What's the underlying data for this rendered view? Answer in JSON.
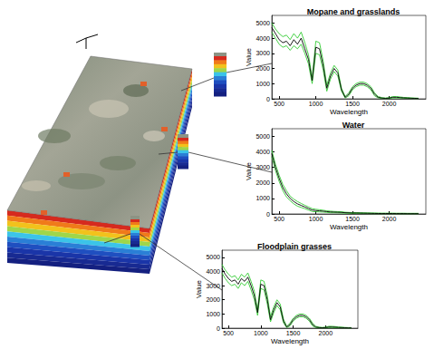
{
  "chart_data": [
    {
      "type": "line",
      "title": "Mopane and grasslands",
      "xlabel": "Wavelength",
      "ylabel": "Value",
      "x": [
        400,
        450,
        500,
        550,
        600,
        650,
        700,
        750,
        800,
        850,
        900,
        950,
        1000,
        1050,
        1100,
        1150,
        1200,
        1250,
        1300,
        1350,
        1400,
        1450,
        1500,
        1550,
        1600,
        1650,
        1700,
        1750,
        1800,
        1850,
        1900,
        1950,
        2000,
        2050,
        2100,
        2150,
        2200,
        2250,
        2300,
        2350,
        2400
      ],
      "series": [
        {
          "color": "#33cc33",
          "values": [
            5000,
            4600,
            4300,
            4100,
            4200,
            3900,
            4300,
            4000,
            4400,
            3700,
            2900,
            1400,
            3800,
            3700,
            2500,
            900,
            1700,
            2200,
            1900,
            700,
            150,
            400,
            800,
            1000,
            1100,
            1100,
            1000,
            800,
            400,
            150,
            80,
            50,
            80,
            150,
            150,
            120,
            90,
            80,
            60,
            50,
            40
          ]
        },
        {
          "color": "#33cc33",
          "values": [
            4400,
            4000,
            3600,
            3400,
            3500,
            3200,
            3500,
            3300,
            3600,
            3000,
            2300,
            1000,
            3000,
            2900,
            1900,
            500,
            1300,
            1800,
            1500,
            500,
            50,
            200,
            600,
            800,
            900,
            900,
            800,
            600,
            200,
            60,
            20,
            10,
            20,
            60,
            60,
            50,
            40,
            30,
            20,
            10,
            10
          ]
        },
        {
          "color": "#000000",
          "values": [
            4700,
            4300,
            3900,
            3700,
            3800,
            3500,
            3900,
            3600,
            4000,
            3300,
            2600,
            1200,
            3400,
            3300,
            2200,
            700,
            1500,
            2000,
            1700,
            600,
            100,
            300,
            700,
            900,
            1000,
            1000,
            900,
            700,
            300,
            100,
            50,
            30,
            50,
            100,
            100,
            80,
            60,
            50,
            40,
            30,
            20
          ]
        }
      ],
      "xlim": [
        400,
        2500
      ],
      "xticks": [
        500,
        1000,
        1500,
        2000
      ],
      "ylim": [
        0,
        5500
      ],
      "yticks": [
        0,
        1000,
        2000,
        3000,
        4000,
        5000
      ],
      "grid": false
    },
    {
      "type": "line",
      "title": "Water",
      "xlabel": "Wavelength",
      "ylabel": "Value",
      "x": [
        400,
        450,
        500,
        550,
        600,
        650,
        700,
        750,
        800,
        850,
        900,
        950,
        1000,
        1050,
        1100,
        1150,
        1200,
        1250,
        1300,
        1350,
        1400,
        1450,
        1500,
        1550,
        1600,
        1650,
        1700,
        1750,
        1800,
        1850,
        1900,
        1950,
        2000,
        2050,
        2100,
        2150,
        2200,
        2250,
        2300,
        2350,
        2400
      ],
      "series": [
        {
          "color": "#33cc33",
          "values": [
            4100,
            3200,
            2500,
            1900,
            1500,
            1150,
            950,
            800,
            680,
            560,
            450,
            340,
            300,
            270,
            240,
            200,
            180,
            160,
            150,
            140,
            110,
            100,
            90,
            85,
            80,
            75,
            70,
            65,
            60,
            55,
            50,
            50,
            50,
            50,
            45,
            45,
            45,
            40,
            40,
            40,
            40
          ]
        },
        {
          "color": "#33cc33",
          "values": [
            3700,
            2800,
            2100,
            1500,
            1100,
            850,
            650,
            500,
            420,
            340,
            250,
            160,
            140,
            130,
            120,
            100,
            80,
            80,
            70,
            60,
            50,
            40,
            30,
            35,
            30,
            25,
            20,
            15,
            10,
            10,
            10,
            10,
            10,
            10,
            5,
            5,
            5,
            5,
            5,
            5,
            5
          ]
        },
        {
          "color": "#000000",
          "values": [
            3900,
            3000,
            2300,
            1700,
            1300,
            1000,
            800,
            650,
            550,
            450,
            350,
            250,
            220,
            200,
            180,
            150,
            130,
            120,
            110,
            100,
            80,
            70,
            60,
            60,
            55,
            50,
            45,
            40,
            35,
            30,
            30,
            30,
            30,
            30,
            25,
            25,
            25,
            20,
            20,
            20,
            20
          ]
        }
      ],
      "xlim": [
        400,
        2500
      ],
      "xticks": [
        500,
        1000,
        1500,
        2000
      ],
      "ylim": [
        0,
        5500
      ],
      "yticks": [
        0,
        1000,
        2000,
        3000,
        4000,
        5000
      ],
      "grid": false
    },
    {
      "type": "line",
      "title": "Floodplain grasses",
      "xlabel": "Wavelength",
      "ylabel": "Value",
      "x": [
        400,
        450,
        500,
        550,
        600,
        650,
        700,
        750,
        800,
        850,
        900,
        950,
        1000,
        1050,
        1100,
        1150,
        1200,
        1250,
        1300,
        1350,
        1400,
        1450,
        1500,
        1550,
        1600,
        1650,
        1700,
        1750,
        1800,
        1850,
        1900,
        1950,
        2000,
        2050,
        2100,
        2150,
        2200,
        2250,
        2300,
        2350,
        2400
      ],
      "series": [
        {
          "color": "#33cc33",
          "values": [
            4500,
            4100,
            3800,
            3600,
            3700,
            3400,
            3800,
            3600,
            3900,
            3300,
            2600,
            1300,
            3400,
            3300,
            2300,
            800,
            1500,
            2000,
            1700,
            650,
            130,
            350,
            700,
            900,
            1000,
            1000,
            900,
            700,
            350,
            130,
            70,
            50,
            70,
            130,
            130,
            110,
            80,
            70,
            50,
            40,
            40
          ]
        },
        {
          "color": "#33cc33",
          "values": [
            3900,
            3500,
            3200,
            3000,
            3100,
            2800,
            3200,
            3000,
            3300,
            2700,
            2000,
            900,
            2800,
            2700,
            1700,
            450,
            1100,
            1600,
            1300,
            380,
            40,
            150,
            500,
            700,
            800,
            800,
            700,
            500,
            150,
            40,
            15,
            10,
            15,
            40,
            40,
            30,
            20,
            15,
            10,
            5,
            5
          ]
        },
        {
          "color": "#000000",
          "values": [
            4200,
            3800,
            3500,
            3300,
            3400,
            3100,
            3500,
            3300,
            3600,
            3000,
            2300,
            1100,
            3100,
            3000,
            2000,
            600,
            1300,
            1800,
            1500,
            500,
            80,
            250,
            600,
            800,
            900,
            900,
            800,
            600,
            250,
            80,
            40,
            30,
            40,
            80,
            80,
            70,
            50,
            40,
            30,
            20,
            20
          ]
        }
      ],
      "xlim": [
        400,
        2500
      ],
      "xticks": [
        500,
        1000,
        1500,
        2000
      ],
      "ylim": [
        0,
        5500
      ],
      "yticks": [
        0,
        1000,
        2000,
        3000,
        4000,
        5000
      ],
      "grid": false
    }
  ]
}
